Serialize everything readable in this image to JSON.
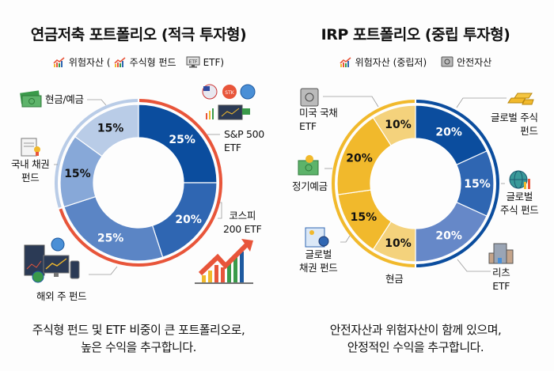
{
  "chart_data": [
    {
      "type": "pie",
      "variant": "donut",
      "title": "연금저축 포트폴리오 (적극 투자형)",
      "legend": [
        {
          "icon": "growth-chart-icon",
          "label": "위험자산 ("
        },
        {
          "icon": "growth-chart-icon",
          "label": "주식형 펀드"
        },
        {
          "icon": "etf-monitor-icon",
          "label": "ETF)"
        }
      ],
      "slices": [
        {
          "label": "S&P 500\nETF",
          "value": 25,
          "value_label": "25%",
          "group": "위험자산",
          "color": "#0b4d9e",
          "text_color": "#ffffff"
        },
        {
          "label": "코스피\n200 ETF",
          "value": 20,
          "value_label": "20%",
          "group": "위험자산",
          "color": "#2f66b2",
          "text_color": "#ffffff"
        },
        {
          "label": "해외 주 펀드",
          "value": 25,
          "value_label": "25%",
          "group": "위험자산",
          "color": "#5b85c5",
          "text_color": "#ffffff"
        },
        {
          "label": "국내 채권\n펀드",
          "value": 15,
          "value_label": "15%",
          "group": "안전자산",
          "color": "#87a8d8",
          "text_color": "#111111"
        },
        {
          "label": "현금/예금",
          "value": 15,
          "value_label": "15%",
          "group": "안전자산",
          "color": "#b9cce7",
          "text_color": "#111111"
        }
      ],
      "group_colors": {
        "위험자산": "#e8553a",
        "안전자산": "#b9cce7"
      },
      "caption": "주식형 펀드 및 ETF 비중이 큰 포트폴리오로,\n높은 수익을 추구합니다."
    },
    {
      "type": "pie",
      "variant": "donut",
      "title": "IRP 포트폴리오 (중립 투자형)",
      "legend": [
        {
          "icon": "growth-chart-icon",
          "label": "위험자산 (중립저)"
        },
        {
          "icon": "safe-icon",
          "label": "안전자산"
        }
      ],
      "slices": [
        {
          "label": "글로벌 주식\n펀드",
          "value": 20,
          "value_label": "20%",
          "group": "위험자산",
          "color": "#0b4d9e",
          "text_color": "#ffffff"
        },
        {
          "label": "글로벌\n주식 펀드",
          "value": 15,
          "value_label": "15%",
          "group": "위험자산",
          "color": "#2f66b2",
          "text_color": "#ffffff"
        },
        {
          "label": "리츠\nETF",
          "value": 20,
          "value_label": "20%",
          "group": "위험자산",
          "color": "#6688c8",
          "text_color": "#ffffff"
        },
        {
          "label": "현금",
          "value": 10,
          "value_label": "10%",
          "group": "안전자산",
          "color": "#f4d27c",
          "text_color": "#111111"
        },
        {
          "label": "글로벌\n채권 펀드",
          "value": 15,
          "value_label": "15%",
          "group": "안전자산",
          "color": "#f1b92c",
          "text_color": "#111111"
        },
        {
          "label": "정기예금",
          "value": 20,
          "value_label": "20%",
          "group": "안전자산",
          "color": "#f1b92c",
          "text_color": "#111111"
        },
        {
          "label": "미국 국채\nETF",
          "value": 10,
          "value_label": "10%",
          "group": "안전자산",
          "color": "#f4d27c",
          "text_color": "#111111"
        }
      ],
      "group_colors": {
        "위험자산": "#0b4d9e",
        "안전자산": "#f1b92c"
      },
      "caption": "안전자산과 위험자산이 함께 있으며,\n안정적인 수익을 추구합니다."
    }
  ]
}
